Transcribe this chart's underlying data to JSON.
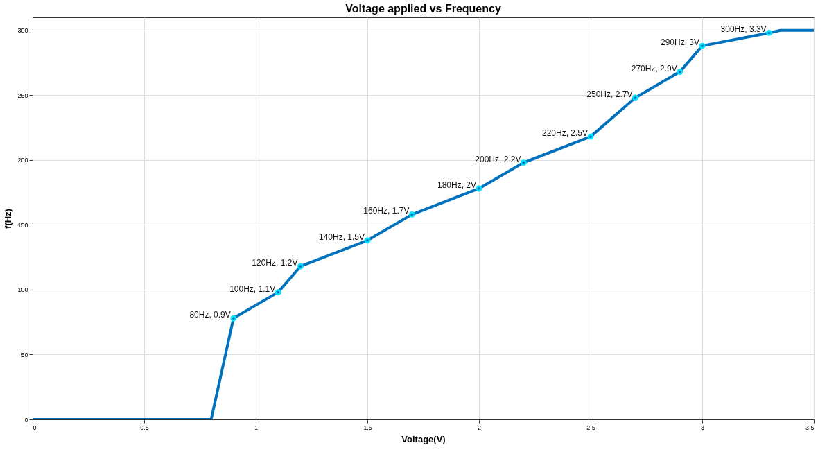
{
  "chart_data": {
    "type": "line",
    "title": "Voltage applied vs Frequency",
    "xlabel": "Voltage(V)",
    "ylabel": "f(Hz)",
    "xlim": [
      0,
      3.5
    ],
    "xticks": [
      0,
      0.5,
      1,
      1.5,
      2,
      2.5,
      3,
      3.5
    ],
    "ylim": [
      0,
      310
    ],
    "yticks": [
      0,
      50,
      100,
      150,
      200,
      250,
      300
    ],
    "grid": true,
    "series": [
      {
        "color": "#0072bd",
        "marker": "none",
        "line_style": "solid",
        "x": [
          0,
          0.8,
          0.9,
          1.1,
          1.2,
          1.5,
          1.7,
          2,
          2.2,
          2.5,
          2.7,
          2.9,
          3,
          3.3,
          3.35,
          3.5
        ],
        "values": [
          0,
          0,
          78,
          98,
          118,
          138,
          158,
          178,
          198,
          218,
          248,
          268,
          288,
          298,
          300,
          300
        ]
      },
      {
        "type": "scatter",
        "color": "#00e5ff",
        "marker": "circle",
        "x": [
          0.9,
          1.1,
          1.2,
          1.5,
          1.7,
          2,
          2.2,
          2.5,
          2.7,
          2.9,
          3,
          3.3
        ],
        "values": [
          78,
          98,
          118,
          138,
          158,
          178,
          198,
          218,
          248,
          268,
          288,
          298
        ]
      }
    ],
    "annotations": [
      {
        "text": "80Hz, 0.9V",
        "x": 0.9,
        "y": 78
      },
      {
        "text": "100Hz, 1.1V",
        "x": 1.1,
        "y": 98
      },
      {
        "text": "120Hz, 1.2V",
        "x": 1.2,
        "y": 118
      },
      {
        "text": "140Hz, 1.5V",
        "x": 1.5,
        "y": 138
      },
      {
        "text": "160Hz, 1.7V",
        "x": 1.7,
        "y": 158
      },
      {
        "text": "180Hz, 2V",
        "x": 2,
        "y": 178
      },
      {
        "text": "200Hz, 2.2V",
        "x": 2.2,
        "y": 198
      },
      {
        "text": "220Hz, 2.5V",
        "x": 2.5,
        "y": 218
      },
      {
        "text": "250Hz, 2.7V",
        "x": 2.7,
        "y": 248
      },
      {
        "text": "270Hz, 2.9V",
        "x": 2.9,
        "y": 268
      },
      {
        "text": "290Hz, 3V",
        "x": 3,
        "y": 288
      },
      {
        "text": "300Hz, 3.3V",
        "x": 3.3,
        "y": 298
      }
    ]
  }
}
